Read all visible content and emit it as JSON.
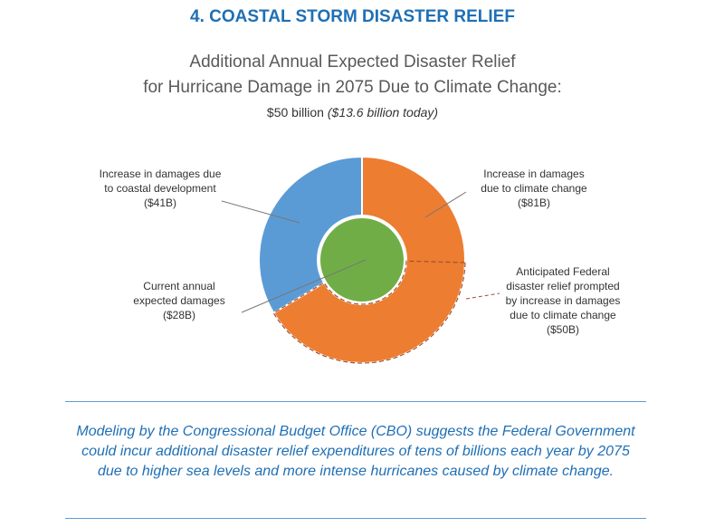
{
  "section_title": "4. COASTAL STORM DISASTER RELIEF",
  "chart_data": {
    "type": "pie",
    "title_line1": "Additional Annual Expected Disaster Relief",
    "title_line2": "for Hurricane Damage in 2075 Due to Climate Change:",
    "subtitle": "$50 billion",
    "subtitle_italic": "($13.6 billion today)",
    "outer_ring": [
      {
        "name": "Increase in damages due to climate change",
        "value": 81,
        "color": "#ed7d31"
      },
      {
        "name": "Increase in damages due to coastal development",
        "value": 41,
        "color": "#5b9bd5"
      }
    ],
    "inner": {
      "name": "Current annual expected damages",
      "value": 28,
      "color": "#70ad47"
    },
    "highlight": {
      "name": "Anticipated Federal disaster relief prompted by increase in damages due to climate change",
      "value": 50,
      "subset_of": "Increase in damages due to climate change"
    },
    "labels": {
      "dev": [
        "Increase in damages due",
        "to coastal development",
        "($41B)"
      ],
      "climate": [
        "Increase in damages",
        "due to climate change",
        "($81B)"
      ],
      "current": [
        "Current annual",
        "expected damages",
        "($28B)"
      ],
      "relief": [
        "Anticipated Federal",
        "disaster relief prompted",
        "by increase in damages",
        "due to climate change",
        "($50B)"
      ]
    }
  },
  "note": "Modeling by the Congressional Budget Office (CBO) suggests the Federal Government could incur additional disaster relief expenditures of tens of billions each year by 2075 due to higher sea levels and more intense hurricanes caused by climate change."
}
